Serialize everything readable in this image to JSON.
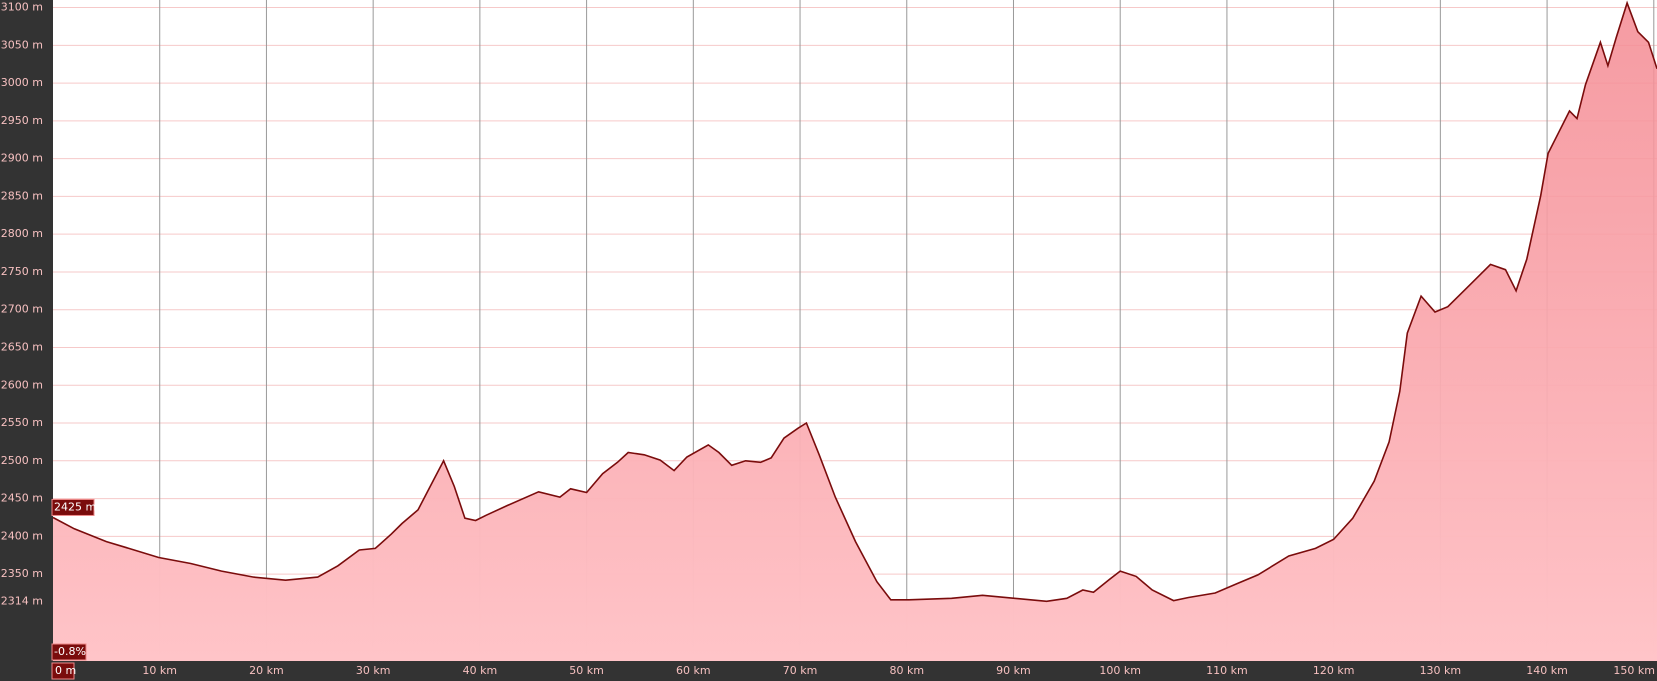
{
  "chart_data": {
    "type": "area",
    "x": [
      0,
      2,
      5,
      6.9,
      9.9,
      12.9,
      15.8,
      18.8,
      21.8,
      24.8,
      26.7,
      28.7,
      30.2,
      31.7,
      32.7,
      34.2,
      35.6,
      36.6,
      37.6,
      38.6,
      39.6,
      40.6,
      42.6,
      45.5,
      47.5,
      48.5,
      50,
      51.5,
      52.9,
      53.9,
      55.4,
      56.9,
      58.2,
      59.4,
      61.4,
      62.4,
      63.6,
      64.9,
      66.3,
      67.3,
      68.5,
      69.8,
      70.6,
      71.8,
      73.3,
      75.2,
      77.2,
      78.5,
      80.2,
      84.2,
      87.1,
      90.1,
      93.1,
      95,
      96.5,
      97.5,
      99,
      100,
      101.5,
      103,
      105,
      106.4,
      108.9,
      110.9,
      112.9,
      115.8,
      118.3,
      120,
      121.8,
      123.8,
      125.2,
      126.2,
      126.9,
      128.2,
      129.5,
      130.7,
      132.7,
      134.7,
      136.1,
      137.1,
      138.1,
      139.4,
      140.1,
      141.1,
      142.1,
      142.8,
      143.6,
      145,
      145.7,
      146.5,
      147.5,
      148.5,
      149.5,
      150.3
    ],
    "series": [
      {
        "color": "#7a0c0c",
        "fill": "#f9b4b8",
        "values": [
          2425,
          2410,
          2393,
          2385,
          2372,
          2364,
          2354,
          2346,
          2342,
          2346,
          2361,
          2382,
          2384,
          2403,
          2417,
          2435,
          2473,
          2500,
          2466,
          2424,
          2421,
          2428,
          2441,
          2459,
          2452,
          2463,
          2458,
          2483,
          2498,
          2511,
          2508,
          2501,
          2487,
          2505,
          2521,
          2511,
          2494,
          2500,
          2498,
          2504,
          2530,
          2543,
          2550,
          2508,
          2452,
          2393,
          2340,
          2316,
          2316,
          2318,
          2322,
          2318,
          2314,
          2318,
          2329,
          2326,
          2343,
          2354,
          2347,
          2329,
          2315,
          2319,
          2325,
          2337,
          2349,
          2374,
          2384,
          2396,
          2424,
          2473,
          2525,
          2592,
          2669,
          2718,
          2697,
          2704,
          2732,
          2760,
          2753,
          2725,
          2767,
          2851,
          2907,
          2935,
          2963,
          2953,
          2998,
          3054,
          3023,
          3061,
          3106,
          3068,
          3054,
          3019
        ]
      }
    ],
    "xlim": [
      0,
      150.3
    ],
    "ylim": [
      2235,
      3110
    ],
    "xticks": [
      {
        "value": 0,
        "label": "0 m"
      },
      {
        "value": 10,
        "label": "10 km"
      },
      {
        "value": 20,
        "label": "20 km"
      },
      {
        "value": 30,
        "label": "30 km"
      },
      {
        "value": 40,
        "label": "40 km"
      },
      {
        "value": 50,
        "label": "50 km"
      },
      {
        "value": 60,
        "label": "60 km"
      },
      {
        "value": 70,
        "label": "70 km"
      },
      {
        "value": 80,
        "label": "80 km"
      },
      {
        "value": 90,
        "label": "90 km"
      },
      {
        "value": 100,
        "label": "100 km"
      },
      {
        "value": 110,
        "label": "110 km"
      },
      {
        "value": 120,
        "label": "120 km"
      },
      {
        "value": 130,
        "label": "130 km"
      },
      {
        "value": 140,
        "label": "140 km"
      },
      {
        "value": 150,
        "label": "150 km"
      }
    ],
    "yticks": [
      {
        "value": 2314,
        "label": "2314 m"
      },
      {
        "value": 2350,
        "label": "2350 m"
      },
      {
        "value": 2400,
        "label": "2400 m"
      },
      {
        "value": 2450,
        "label": "2450 m"
      },
      {
        "value": 2500,
        "label": "2500 m"
      },
      {
        "value": 2550,
        "label": "2550 m"
      },
      {
        "value": 2600,
        "label": "2600 m"
      },
      {
        "value": 2650,
        "label": "2650 m"
      },
      {
        "value": 2700,
        "label": "2700 m"
      },
      {
        "value": 2750,
        "label": "2750 m"
      },
      {
        "value": 2800,
        "label": "2800 m"
      },
      {
        "value": 2850,
        "label": "2850 m"
      },
      {
        "value": 2900,
        "label": "2900 m"
      },
      {
        "value": 2950,
        "label": "2950 m"
      },
      {
        "value": 3000,
        "label": "3000 m"
      },
      {
        "value": 3050,
        "label": "3050 m"
      },
      {
        "value": 3100,
        "label": "3100 m"
      }
    ],
    "grid": true,
    "annotations": [
      "2425 m",
      "-0.8%"
    ]
  }
}
